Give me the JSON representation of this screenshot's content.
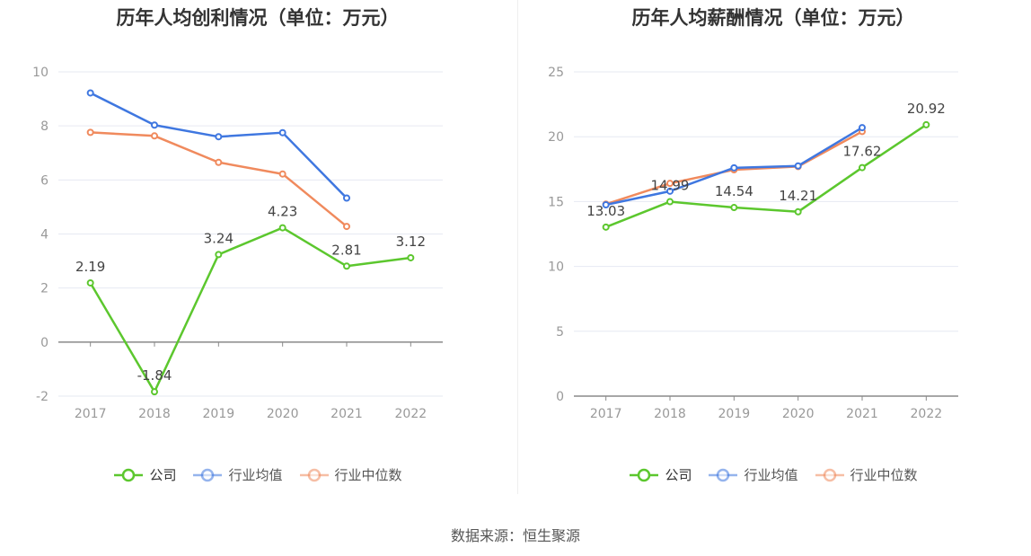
{
  "colors": {
    "company": "#5cc72e",
    "avg": "#3f77e0",
    "median": "#f08a5d",
    "grid": "#e6e9f2",
    "axis": "#8a8a8a",
    "label": "#999999"
  },
  "source": "数据来源：恒生聚源",
  "chart_data": [
    {
      "type": "line",
      "title": "历年人均创利情况（单位：万元）",
      "categories": [
        "2017",
        "2018",
        "2019",
        "2020",
        "2021",
        "2022"
      ],
      "ylim": [
        -2,
        10
      ],
      "yticks": [
        "-2",
        "0",
        "2",
        "4",
        "6",
        "8",
        "10"
      ],
      "grid": true,
      "legend_position": "bottom",
      "series": [
        {
          "key": "company",
          "name": "公司",
          "values": [
            2.19,
            -1.84,
            3.24,
            4.23,
            2.81,
            3.12
          ],
          "labels": [
            "2.19",
            "-1.84",
            "3.24",
            "4.23",
            "2.81",
            "3.12"
          ]
        },
        {
          "key": "avg",
          "name": "行业均值",
          "values": [
            9.22,
            8.03,
            7.6,
            7.75,
            5.33,
            null
          ]
        },
        {
          "key": "median",
          "name": "行业中位数",
          "values": [
            7.76,
            7.63,
            6.65,
            6.22,
            4.28,
            null
          ]
        }
      ]
    },
    {
      "type": "line",
      "title": "历年人均薪酬情况（单位：万元）",
      "categories": [
        "2017",
        "2018",
        "2019",
        "2020",
        "2021",
        "2022"
      ],
      "ylim": [
        0,
        25
      ],
      "yticks": [
        "0",
        "5",
        "10",
        "15",
        "20",
        "25"
      ],
      "grid": true,
      "legend_position": "bottom",
      "series": [
        {
          "key": "company",
          "name": "公司",
          "values": [
            13.03,
            14.99,
            14.54,
            14.21,
            17.62,
            20.92
          ],
          "labels": [
            "13.03",
            "14.99",
            "14.54",
            "14.21",
            "17.62",
            "20.92"
          ]
        },
        {
          "key": "avg",
          "name": "行业均值",
          "values": [
            14.75,
            15.8,
            17.6,
            17.75,
            20.7,
            null
          ]
        },
        {
          "key": "median",
          "name": "行业中位数",
          "values": [
            14.8,
            16.4,
            17.45,
            17.7,
            20.4,
            null
          ]
        }
      ]
    }
  ]
}
